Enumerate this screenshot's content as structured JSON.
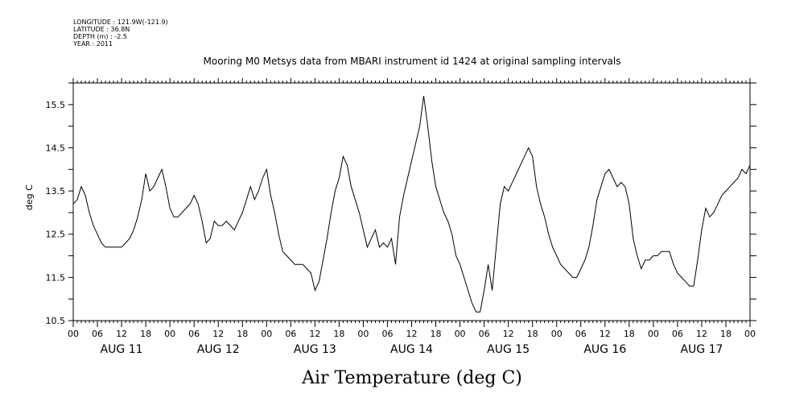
{
  "chart_data": {
    "type": "line",
    "meta_lines": [
      "LONGITUDE : 121.9W(-121.9)",
      "LATITUDE : 36.8N",
      "DEPTH (m) : -2.5",
      "YEAR : 2011"
    ],
    "title": "Mooring M0 Metsys data from MBARI instrument id 1424 at original sampling intervals",
    "xlabel": "Air Temperature (deg C)",
    "ylabel": "deg C",
    "ylim": [
      10.5,
      16.0
    ],
    "xlim_hours": [
      0,
      168
    ],
    "y_tick_labels": [
      "10.5",
      "11.5",
      "12.5",
      "13.5",
      "14.5",
      "15.5"
    ],
    "y_tick_values": [
      10.5,
      11.5,
      12.5,
      13.5,
      14.5,
      15.5
    ],
    "x_hour_labels": [
      "00",
      "06",
      "12",
      "18",
      "00",
      "06",
      "12",
      "18",
      "00",
      "06",
      "12",
      "18",
      "00",
      "06",
      "12",
      "18",
      "00",
      "06",
      "12",
      "18",
      "00",
      "06",
      "12",
      "18",
      "00",
      "06",
      "12",
      "18",
      "00"
    ],
    "day_labels": [
      "AUG 11",
      "AUG 12",
      "AUG 13",
      "AUG 14",
      "AUG 15",
      "AUG 16",
      "AUG 17"
    ],
    "series": [
      {
        "x": [
          0,
          1,
          2,
          3,
          4,
          5,
          6,
          7,
          8,
          9,
          10,
          11,
          12,
          13,
          14,
          15,
          16,
          17,
          18,
          19,
          20,
          21,
          22,
          23,
          24,
          25,
          26,
          27,
          28,
          29,
          30,
          31,
          32,
          33,
          34,
          35,
          36,
          37,
          38,
          39,
          40,
          41,
          42,
          43,
          44,
          45,
          46,
          47,
          48,
          49,
          50,
          51,
          52,
          53,
          54,
          55,
          56,
          57,
          58,
          59,
          60,
          61,
          62,
          63,
          64,
          65,
          66,
          67,
          68,
          69,
          70,
          71,
          72,
          73,
          74,
          75,
          76,
          77,
          78,
          79,
          80,
          81,
          82,
          83,
          84,
          85,
          86,
          87,
          88,
          89,
          90,
          91,
          92,
          93,
          94,
          95,
          96,
          97,
          98,
          99,
          100,
          101,
          102,
          103,
          104,
          105,
          106,
          107,
          108,
          109,
          110,
          111,
          112,
          113,
          114,
          115,
          116,
          117,
          118,
          119,
          120,
          121,
          122,
          123,
          124,
          125,
          126,
          127,
          128,
          129,
          130,
          131,
          132,
          133,
          134,
          135,
          136,
          137,
          138,
          139,
          140,
          141,
          142,
          143,
          144,
          145,
          146,
          147,
          148,
          149,
          150,
          151,
          152,
          153,
          154,
          155,
          156,
          157,
          158,
          159,
          160,
          161,
          162,
          163,
          164,
          165,
          166,
          167,
          168
        ],
        "y": [
          13.2,
          13.3,
          13.6,
          13.4,
          13.0,
          12.7,
          12.5,
          12.3,
          12.2,
          12.2,
          12.2,
          12.2,
          12.2,
          12.3,
          12.4,
          12.6,
          12.9,
          13.3,
          13.9,
          13.5,
          13.6,
          13.8,
          14.0,
          13.6,
          13.1,
          12.9,
          12.9,
          13.0,
          13.1,
          13.2,
          13.4,
          13.2,
          12.8,
          12.3,
          12.4,
          12.8,
          12.7,
          12.7,
          12.8,
          12.7,
          12.6,
          12.8,
          13.0,
          13.3,
          13.6,
          13.3,
          13.5,
          13.8,
          14.0,
          13.4,
          13.0,
          12.5,
          12.1,
          12.0,
          11.9,
          11.8,
          11.8,
          11.8,
          11.7,
          11.6,
          11.2,
          11.4,
          11.9,
          12.4,
          13.0,
          13.5,
          13.8,
          14.3,
          14.1,
          13.6,
          13.3,
          13.0,
          12.6,
          12.2,
          12.4,
          12.6,
          12.2,
          12.3,
          12.2,
          12.4,
          11.8,
          12.9,
          13.4,
          13.8,
          14.2,
          14.6,
          15.0,
          15.7,
          15.0,
          14.2,
          13.6,
          13.3,
          13.0,
          12.8,
          12.5,
          12.0,
          11.8,
          11.5,
          11.2,
          10.9,
          10.7,
          10.7,
          11.2,
          11.8,
          11.2,
          12.2,
          13.2,
          13.6,
          13.5,
          13.7,
          13.9,
          14.1,
          14.3,
          14.5,
          14.3,
          13.6,
          13.2,
          12.9,
          12.5,
          12.2,
          12.0,
          11.8,
          11.7,
          11.6,
          11.5,
          11.5,
          11.7,
          11.9,
          12.2,
          12.7,
          13.3,
          13.6,
          13.9,
          14.0,
          13.8,
          13.6,
          13.7,
          13.6,
          13.2,
          12.4,
          12.0,
          11.7,
          11.9,
          11.9,
          12.0,
          12.0,
          12.1,
          12.1,
          12.1,
          11.8,
          11.6,
          11.5,
          11.4,
          11.3,
          11.3,
          11.9,
          12.6,
          13.1,
          12.9,
          13.0,
          13.2,
          13.4,
          13.5,
          13.6,
          13.7,
          13.8,
          14.0,
          13.9,
          14.1
        ]
      }
    ],
    "grid": false
  }
}
